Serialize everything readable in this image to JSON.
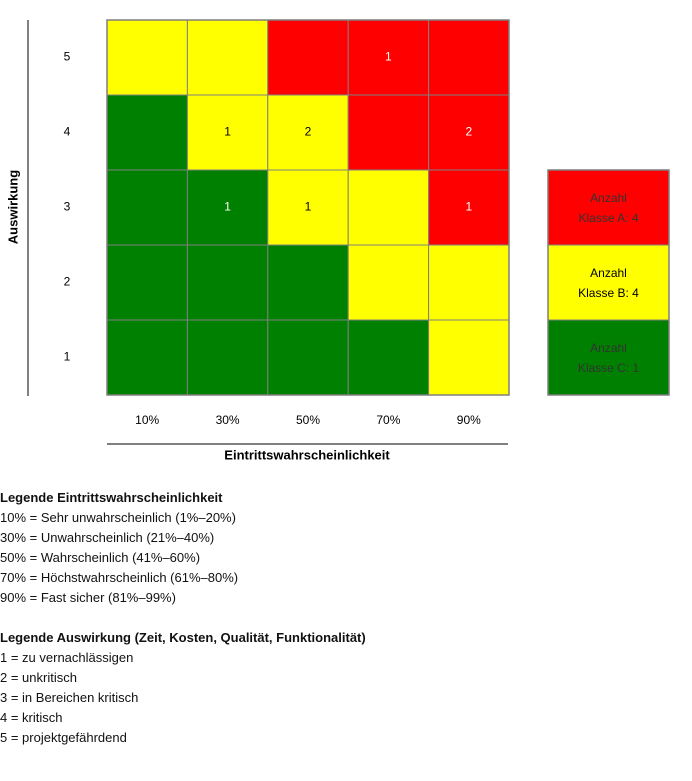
{
  "chart_data": {
    "type": "heatmap",
    "title": "",
    "xlabel": "Eintrittswahrscheinlichkeit",
    "ylabel": "Auswirkung",
    "x_categories": [
      "10%",
      "30%",
      "50%",
      "70%",
      "90%"
    ],
    "y_categories": [
      "1",
      "2",
      "3",
      "4",
      "5"
    ],
    "grid_rows_top_to_bottom": [
      {
        "impact": "5",
        "colors": [
          "yellow",
          "yellow",
          "red",
          "red",
          "red"
        ],
        "counts": [
          "",
          "",
          "",
          "1",
          ""
        ]
      },
      {
        "impact": "4",
        "colors": [
          "green",
          "yellow",
          "yellow",
          "red",
          "red"
        ],
        "counts": [
          "",
          "1",
          "2",
          "",
          "2"
        ]
      },
      {
        "impact": "3",
        "colors": [
          "green",
          "green",
          "yellow",
          "yellow",
          "red"
        ],
        "counts": [
          "",
          "1",
          "1",
          "",
          "1"
        ]
      },
      {
        "impact": "2",
        "colors": [
          "green",
          "green",
          "green",
          "yellow",
          "yellow"
        ],
        "counts": [
          "",
          "",
          "",
          "",
          ""
        ]
      },
      {
        "impact": "1",
        "colors": [
          "green",
          "green",
          "green",
          "green",
          "yellow"
        ],
        "counts": [
          "",
          "",
          "",
          "",
          ""
        ]
      }
    ],
    "colors": {
      "red": "#ff0000",
      "yellow": "#ffff00",
      "green": "#008000",
      "grid_line": "#7f7f7f",
      "cell_text_on_dark": "#ffffff",
      "cell_text_on_light": "#000000"
    },
    "class_summary": [
      {
        "color": "red",
        "line1": "Anzahl",
        "line2": "Klasse A: 4",
        "count": 4
      },
      {
        "color": "yellow",
        "line1": "Anzahl",
        "line2": "Klasse B: 4",
        "count": 4
      },
      {
        "color": "green",
        "line1": "Anzahl",
        "line2": "Klasse C: 1",
        "count": 1
      }
    ]
  },
  "legend_probability": {
    "title": "Legende Eintrittswahrscheinlichkeit",
    "items": [
      "10% = Sehr unwahrscheinlich (1%–20%)",
      "30% = Unwahrscheinlich (21%–40%)",
      "50% = Wahrscheinlich (41%–60%)",
      "70% = Höchstwahrscheinlich (61%–80%)",
      "90% = Fast sicher (81%–99%)"
    ]
  },
  "legend_impact": {
    "title": "Legende Auswirkung (Zeit, Kosten, Qualität, Funktionalität)",
    "items": [
      "1 = zu vernachlässigen",
      "2 = unkritisch",
      "3 = in Bereichen kritisch",
      "4 = kritisch",
      "5 = projektgefährdend"
    ]
  }
}
